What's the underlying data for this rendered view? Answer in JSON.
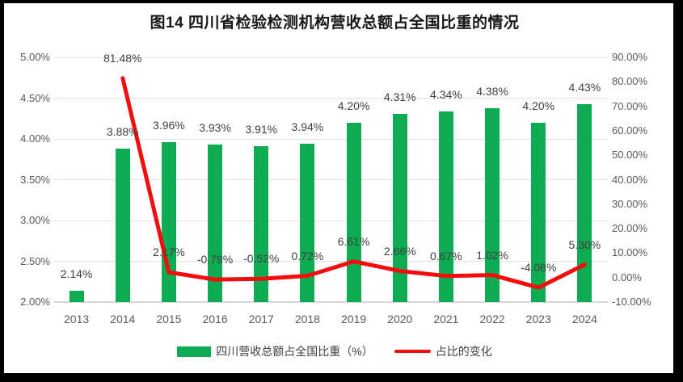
{
  "title": "图14  四川省检验检测机构营收总额占全国比重的情况",
  "legend": {
    "bar_label": "四川营收总额占全国比重（%）",
    "line_label": "占比的变化"
  },
  "colors": {
    "bar": "#0eac52",
    "line": "#f40d0d",
    "gridline": "#e3e3e3",
    "axis_text": "#595959",
    "data_label_text": "#404040",
    "frame": "#000000"
  },
  "chart_data": {
    "type": "bar",
    "subtype": "bar-and-line-combo",
    "title": "图14  四川省检验检测机构营收总额占全国比重的情况",
    "categories": [
      "2013",
      "2014",
      "2015",
      "2016",
      "2017",
      "2018",
      "2019",
      "2020",
      "2021",
      "2022",
      "2023",
      "2024"
    ],
    "series": [
      {
        "name": "四川营收总额占全国比重（%）",
        "type": "bar",
        "axis": "left",
        "color": "#0eac52",
        "values": [
          2.14,
          3.88,
          3.96,
          3.93,
          3.91,
          3.94,
          4.2,
          4.31,
          4.34,
          4.38,
          4.2,
          4.43
        ],
        "labels": [
          "2.14%",
          "3.88%",
          "3.96%",
          "3.93%",
          "3.91%",
          "3.94%",
          "4.20%",
          "4.31%",
          "4.34%",
          "4.38%",
          "4.20%",
          "4.43%"
        ]
      },
      {
        "name": "占比的变化",
        "type": "line",
        "axis": "right",
        "color": "#f40d0d",
        "values": [
          null,
          81.48,
          2.17,
          -0.79,
          -0.52,
          0.72,
          6.61,
          2.66,
          0.67,
          1.02,
          -4.08,
          5.3
        ],
        "labels": [
          null,
          "81.48%",
          "2.17%",
          "-0.79%",
          "-0.52%",
          "0.72%",
          "6.61%",
          "2.66%",
          "0.67%",
          "1.02%",
          "-4.08%",
          "5.30%"
        ]
      }
    ],
    "left_axis": {
      "min": 2.0,
      "max": 5.0,
      "step": 0.5,
      "tick_labels": [
        "5.00%",
        "4.50%",
        "4.00%",
        "3.50%",
        "3.00%",
        "2.50%",
        "2.00%"
      ]
    },
    "right_axis": {
      "min": -10,
      "max": 90,
      "step": 10,
      "tick_labels": [
        "90.00%",
        "80.00%",
        "70.00%",
        "60.00%",
        "50.00%",
        "40.00%",
        "30.00%",
        "20.00%",
        "10.00%",
        "0.00%",
        "-10.00%"
      ]
    },
    "grid": true,
    "legend_position": "bottom"
  }
}
